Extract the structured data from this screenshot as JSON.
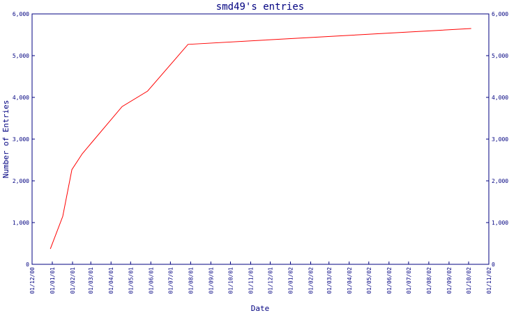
{
  "chart_data": {
    "type": "line",
    "title": "smd49's entries",
    "xlabel": "Date",
    "ylabel": "Number of Entries",
    "ylim": [
      0,
      6000
    ],
    "y_ticks": [
      "0",
      "1,000",
      "2,000",
      "3,000",
      "4,000",
      "5,000",
      "6,000"
    ],
    "x_ticks": [
      "01/12/00",
      "01/01/01",
      "01/02/01",
      "01/03/01",
      "01/04/01",
      "01/05/01",
      "01/06/01",
      "01/07/01",
      "01/08/01",
      "01/09/01",
      "01/10/01",
      "01/11/01",
      "01/12/01",
      "01/01/02",
      "01/02/02",
      "01/03/02",
      "01/04/02",
      "01/05/02",
      "01/06/02",
      "01/07/02",
      "01/08/02",
      "01/09/02",
      "01/10/02",
      "01/11/02"
    ],
    "grid": false,
    "series": [
      {
        "x": [
          "2000-12-29",
          "2001-01-17",
          "2001-01-31",
          "2001-02-16",
          "2001-04-18",
          "2001-05-27",
          "2001-07-28",
          "2002-10-05"
        ],
        "y": [
          370,
          1150,
          2270,
          2650,
          3780,
          4150,
          5270,
          5650
        ]
      }
    ],
    "colors": {
      "axis": "#000080",
      "line": "#ff0000",
      "background": "#ffffff"
    }
  }
}
